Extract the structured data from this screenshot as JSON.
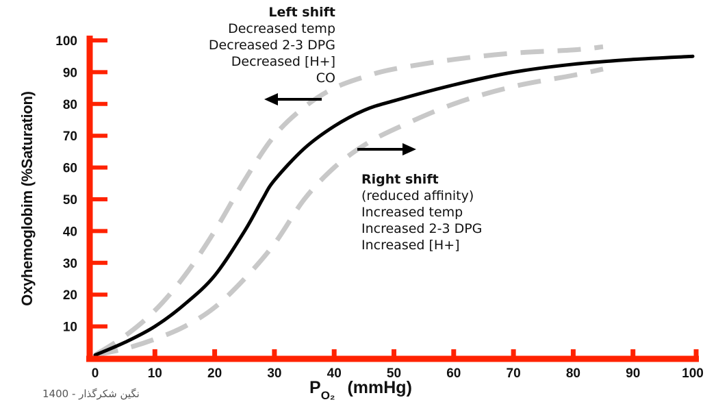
{
  "chart_data": {
    "type": "line",
    "title": "",
    "xlabel": {
      "main": "P",
      "sub": "O₂",
      "unit": "(mmHg)"
    },
    "ylabel": "Oxyhemoglobim (%Saturation)",
    "xlim": [
      0,
      100
    ],
    "ylim": [
      0,
      100
    ],
    "x_ticks": [
      "0",
      "10",
      "20",
      "30",
      "40",
      "50",
      "60",
      "70",
      "80",
      "90",
      "100"
    ],
    "y_ticks": [
      "10",
      "20",
      "30",
      "40",
      "50",
      "60",
      "70",
      "80",
      "90",
      "100"
    ],
    "grid": false,
    "axis_color": "#ff2200",
    "series": [
      {
        "style": "solid",
        "color": "#000000",
        "x": [
          0,
          5,
          10,
          15,
          20,
          25,
          28,
          30,
          35,
          40,
          45,
          50,
          60,
          70,
          80,
          90,
          100
        ],
        "y": [
          1,
          5,
          10,
          17,
          26,
          40,
          50,
          56,
          66,
          73,
          78,
          81,
          86,
          90,
          92.5,
          94,
          95
        ]
      },
      {
        "style": "dashed",
        "color": "#c8c8c8",
        "x": [
          0,
          5,
          10,
          15,
          20,
          25,
          30,
          35,
          40,
          45,
          50,
          60,
          70,
          80,
          85
        ],
        "y": [
          1,
          7,
          15,
          26,
          40,
          56,
          70,
          79,
          85,
          88.5,
          91,
          94,
          96,
          97,
          98
        ]
      },
      {
        "style": "dashed",
        "color": "#c8c8c8",
        "x": [
          0,
          5,
          10,
          15,
          20,
          25,
          30,
          35,
          40,
          45,
          50,
          60,
          70,
          80,
          85
        ],
        "y": [
          1,
          3,
          6,
          10,
          16,
          25,
          36,
          50,
          60,
          67,
          72,
          80,
          85.5,
          89,
          91
        ]
      }
    ],
    "annotations": {
      "left_shift": {
        "title": "Left shift",
        "lines": [
          "Decreased temp",
          "Decreased 2-3 DPG",
          "Decreased [H+]",
          "CO"
        ]
      },
      "right_shift": {
        "title": "Right shift",
        "lines": [
          "(reduced affinity)",
          "Increased temp",
          "Increased 2-3 DPG",
          "Increased [H+]"
        ]
      }
    }
  },
  "watermark": "نگین شکرگذار - 1400"
}
